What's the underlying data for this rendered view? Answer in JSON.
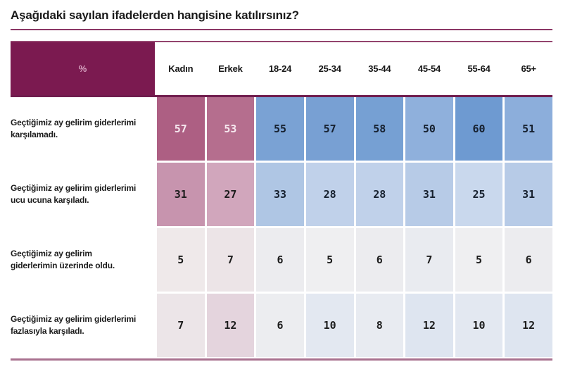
{
  "title": "Aşağıdaki sayılan ifadelerden hangisine katılırsınız?",
  "table": {
    "corner_label": "%",
    "columns": [
      "Kadın",
      "Erkek",
      "18-24",
      "25-34",
      "35-44",
      "45-54",
      "55-64",
      "65+"
    ],
    "rows": [
      {
        "label": "Geçtiğimiz ay gelirim giderlerimi\nkarşılamadı.",
        "values": [
          "57",
          "53",
          "55",
          "57",
          "58",
          "50",
          "60",
          "51"
        ],
        "bg": [
          "#AD5F83",
          "#B56E8E",
          "#7AA2D4",
          "#78A0D3",
          "#76A0D3",
          "#8FB0DC",
          "#6E9AD1",
          "#8CAEDB"
        ],
        "fg": [
          "#F6E8EF",
          "#F6E8EF",
          "#16202E",
          "#16202E",
          "#16202E",
          "#16202E",
          "#16202E",
          "#16202E"
        ]
      },
      {
        "label": "Geçtiğimiz ay gelirim giderlerimi\nucu ucuna karşıladı.",
        "values": [
          "31",
          "27",
          "33",
          "28",
          "28",
          "31",
          "25",
          "31"
        ],
        "bg": [
          "#C794AE",
          "#D1A6BC",
          "#AFC6E4",
          "#C0D1EA",
          "#C0D1EA",
          "#B7CBE7",
          "#C9D8ED",
          "#B7CBE7"
        ],
        "fg": [
          "#1C1C1C",
          "#1C1C1C",
          "#16202E",
          "#16202E",
          "#16202E",
          "#16202E",
          "#16202E",
          "#16202E"
        ]
      },
      {
        "label": "Geçtiğimiz ay gelirim\ngiderlerimin üzerinde oldu.",
        "values": [
          "5",
          "7",
          "6",
          "5",
          "6",
          "7",
          "5",
          "6"
        ],
        "bg": [
          "#EFE9EA",
          "#ECE4E7",
          "#ECECEF",
          "#EFEFF1",
          "#ECECEF",
          "#E9EBF0",
          "#EFEFF1",
          "#ECECEF"
        ],
        "fg": [
          "#1C1C1C",
          "#1C1C1C",
          "#1C1C1C",
          "#1C1C1C",
          "#1C1C1C",
          "#1C1C1C",
          "#1C1C1C",
          "#1C1C1C"
        ]
      },
      {
        "label": "Geçtiğimiz ay gelirim giderlerimi\nfazlasıyla karşıladı.",
        "values": [
          "7",
          "12",
          "6",
          "10",
          "8",
          "12",
          "10",
          "12"
        ],
        "bg": [
          "#ECE5E8",
          "#E4D4DD",
          "#ECEDF0",
          "#E3E8F1",
          "#E8EBF1",
          "#DEE5F0",
          "#E3E8F1",
          "#DEE5F0"
        ],
        "fg": [
          "#1C1C1C",
          "#1C1C1C",
          "#1C1C1C",
          "#1C1C1C",
          "#1C1C1C",
          "#1C1C1C",
          "#1C1C1C",
          "#1C1C1C"
        ]
      }
    ]
  },
  "colors": {
    "header_bg": "#7B1A50",
    "corner_text": "#D9A6C3",
    "title_underline": "#8B3765",
    "table_top_border": "#93446E",
    "header_bottom_border": "#701D4E",
    "bottom_border": "#A9718F",
    "text_dark": "#1C1C1C"
  },
  "chart_data": {
    "type": "heatmap",
    "title": "Aşağıdaki sayılan ifadelerden hangisine katılırsınız?",
    "unit": "%",
    "columns": [
      "Kadın",
      "Erkek",
      "18-24",
      "25-34",
      "35-44",
      "45-54",
      "55-64",
      "65+"
    ],
    "column_groups": [
      "gender",
      "gender",
      "age",
      "age",
      "age",
      "age",
      "age",
      "age"
    ],
    "rows": [
      "Geçtiğimiz ay gelirim giderlerimi karşılamadı.",
      "Geçtiğimiz ay gelirim giderlerimi ucu ucuna karşıladı.",
      "Geçtiğimiz ay gelirim giderlerimin üzerinde oldu.",
      "Geçtiğimiz ay gelirim giderlerimi fazlasıyla karşıladı."
    ],
    "values": [
      [
        57,
        53,
        55,
        57,
        58,
        50,
        60,
        51
      ],
      [
        31,
        27,
        33,
        28,
        28,
        31,
        25,
        31
      ],
      [
        5,
        7,
        6,
        5,
        6,
        7,
        5,
        6
      ],
      [
        7,
        12,
        6,
        10,
        8,
        12,
        10,
        12
      ]
    ],
    "legend": "none",
    "grid": "white 3px gaps between cells",
    "color_scale": {
      "gender_high": "#AD5F83",
      "age_high": "#6E9AD1",
      "low": "#F1EFF0"
    }
  }
}
